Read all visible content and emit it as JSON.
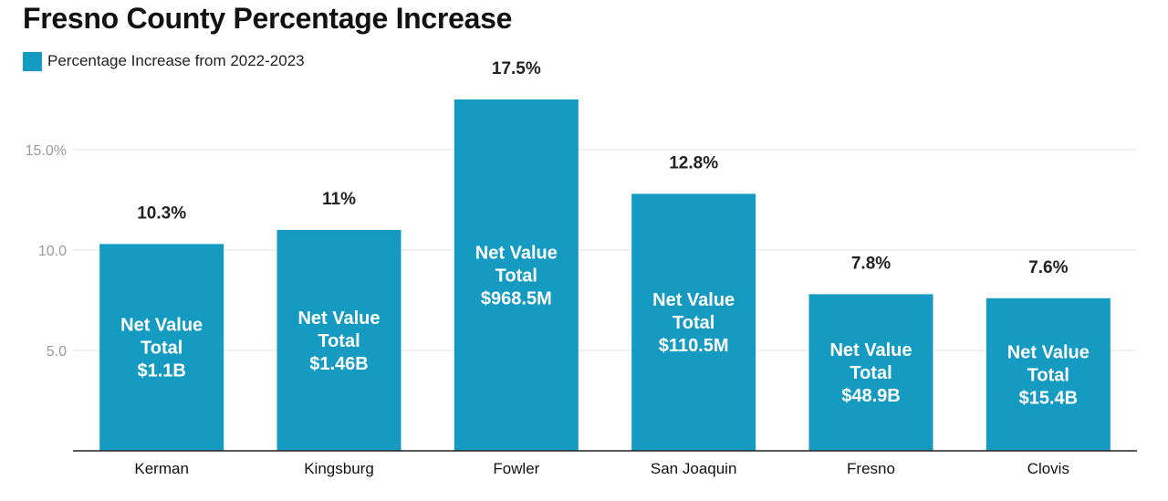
{
  "chart_data": {
    "type": "bar",
    "title": "Fresno County Percentage Increase",
    "xlabel": "",
    "ylabel": "",
    "ylim": [
      0,
      20
    ],
    "yticks": [
      {
        "value": 5,
        "label": "5.0"
      },
      {
        "value": 10,
        "label": "10.0"
      },
      {
        "value": 15,
        "label": "15.0%"
      }
    ],
    "grid": true,
    "legend_position": "top-left",
    "series": [
      {
        "name": "Percentage Increase from 2022-2023",
        "color": "#159bc2"
      }
    ],
    "categories": [
      "Kerman",
      "Kingsburg",
      "Fowler",
      "San Joaquin",
      "Fresno",
      "Clovis"
    ],
    "values": [
      10.3,
      11,
      17.5,
      12.8,
      7.8,
      7.6
    ],
    "value_labels": [
      "10.3%",
      "11%",
      "17.5%",
      "12.8%",
      "7.8%",
      "7.6%"
    ],
    "annotations": [
      [
        "Net Value",
        "Total",
        "$1.1B"
      ],
      [
        "Net Value",
        "Total",
        "$1.46B"
      ],
      [
        "Net Value",
        "Total",
        "$968.5M"
      ],
      [
        "Net Value",
        "Total",
        "$110.5M"
      ],
      [
        "Net Value",
        "Total",
        "$48.9B"
      ],
      [
        "Net Value",
        "Total",
        "$15.4B"
      ]
    ]
  }
}
